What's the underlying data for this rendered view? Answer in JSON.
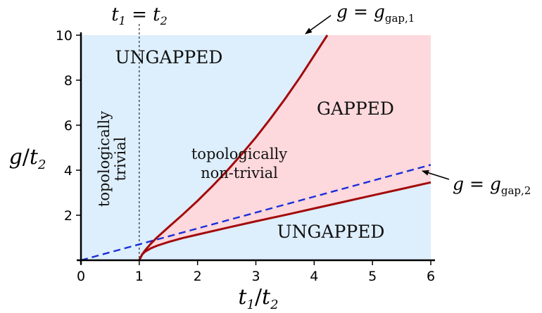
{
  "chart_data": {
    "type": "area",
    "title": "",
    "xlabel": "t₁/t₂",
    "ylabel": "g/t₂",
    "xlim": [
      0,
      6
    ],
    "ylim": [
      0,
      10
    ],
    "xticks": [
      "0",
      "1",
      "2",
      "3",
      "4",
      "5",
      "6"
    ],
    "yticks": [
      "2",
      "4",
      "6",
      "8",
      "10"
    ],
    "grid": false,
    "colors": {
      "ungapped_fill": "#ddeefc",
      "gapped_fill": "#fdd8dc",
      "boundary_curve": "#a30a0a",
      "dashed_line": "#1a2fdb",
      "vertical_line": "#000000"
    },
    "series": [
      {
        "name": "g = g_gap,1",
        "style": "solid",
        "x": [
          1.0,
          1.05,
          1.1,
          1.2,
          1.3,
          1.5,
          1.75,
          2.0,
          2.25,
          2.5,
          2.75,
          3.0,
          3.25,
          3.5,
          3.75,
          3.83
        ],
        "y": [
          0.0,
          0.26,
          0.44,
          0.74,
          1.0,
          1.47,
          2.04,
          2.64,
          3.28,
          3.96,
          4.69,
          5.46,
          6.29,
          7.17,
          8.1,
          8.42
        ]
      },
      {
        "name": "g = g_gap,2",
        "style": "solid",
        "x": [
          1.0,
          1.05,
          1.1,
          1.2,
          1.3,
          1.5,
          1.75,
          2.0,
          2.5,
          3.0,
          3.5,
          4.0,
          4.5,
          5.0,
          5.5,
          6.0
        ],
        "y": [
          0.0,
          0.26,
          0.38,
          0.53,
          0.64,
          0.81,
          0.99,
          1.14,
          1.44,
          1.73,
          2.01,
          2.3,
          2.59,
          2.88,
          3.17,
          3.46
        ]
      },
      {
        "name": "",
        "style": "dashed",
        "x": [
          0.0,
          6.0
        ],
        "y": [
          0.0,
          4.24
        ]
      }
    ],
    "vertical_line": {
      "x": 1.0,
      "label": "t₁ = t₂"
    },
    "annotations": [
      {
        "text": "g = g_gap,1"
      },
      {
        "text": "g = g_gap,2"
      }
    ],
    "regions": {
      "ungapped_top": "UNGAPPED",
      "ungapped_bottom": "UNGAPPED",
      "gapped": "GAPPED",
      "trivial_line1": "topologically",
      "trivial_line2": "trivial",
      "nontrivial_line1": "topologically",
      "nontrivial_line2": "non-trivial"
    }
  }
}
